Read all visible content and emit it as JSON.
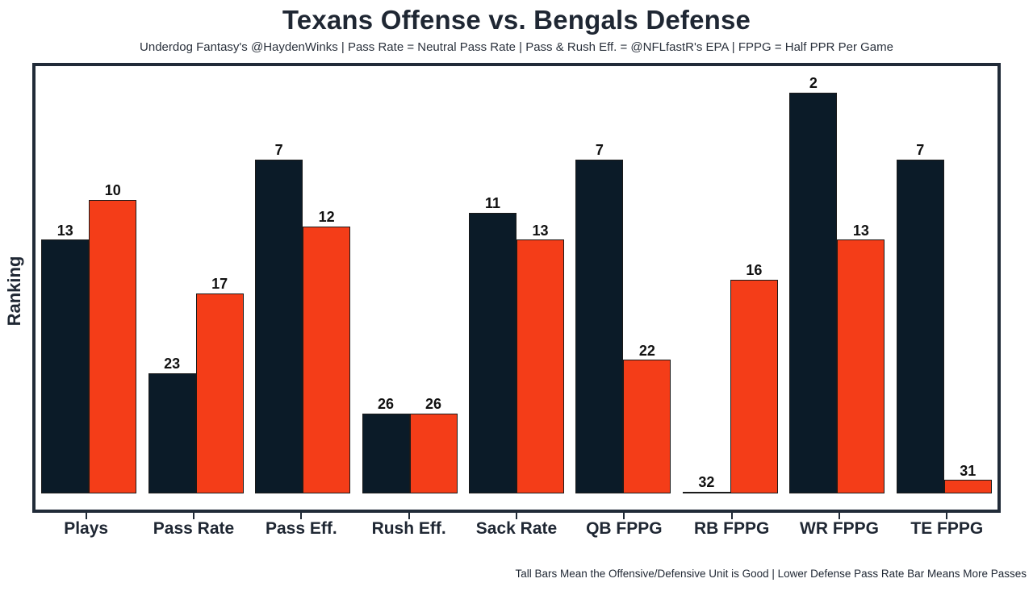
{
  "header": {
    "title": "Texans Offense vs. Bengals Defense",
    "subtitle": "Underdog Fantasy's @HaydenWinks | Pass Rate = Neutral Pass Rate | Pass & Rush Eff. = @NFLfastR's EPA | FPPG = Half PPR Per Game"
  },
  "chart_data": {
    "type": "bar",
    "title": "Texans Offense vs. Bengals Defense",
    "ylabel": "Ranking",
    "xlabel": "",
    "categories": [
      "Plays",
      "Pass Rate",
      "Pass Eff.",
      "Rush Eff.",
      "Sack Rate",
      "QB FPPG",
      "RB FPPG",
      "WR FPPG",
      "TE FPPG"
    ],
    "series": [
      {
        "name": "Texans Offense",
        "color": "#0b1b28",
        "values": [
          13,
          23,
          7,
          26,
          11,
          7,
          32,
          2,
          7
        ]
      },
      {
        "name": "Bengals Defense",
        "color": "#f43d18",
        "values": [
          10,
          17,
          12,
          26,
          13,
          22,
          16,
          13,
          31
        ]
      }
    ],
    "value_axis": {
      "best_rank": 1,
      "worst_rank": 32,
      "bar_height_rule": "lower rank = taller bar"
    },
    "legend_position": "none",
    "grid": false,
    "data_labels": true
  },
  "footer": {
    "note": "Tall Bars Mean the Offensive/Defensive Unit is Good | Lower Defense Pass Rate Bar Means More Passes"
  },
  "colors": {
    "offense_bar": "#0b1b28",
    "defense_bar": "#f43d18",
    "bar_border": "#1a1a1a",
    "plot_border": "#212b38",
    "text": "#1f2733",
    "background": "#ffffff"
  }
}
